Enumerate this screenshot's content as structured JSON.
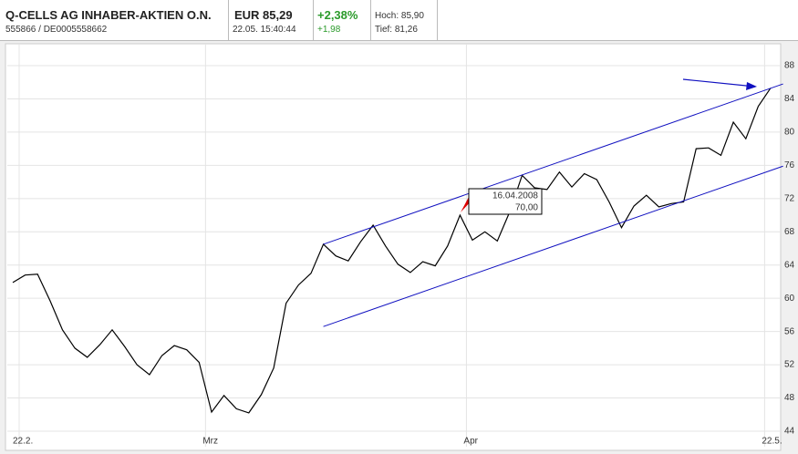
{
  "header": {
    "name": "Q-CELLS AG INHABER-AKTIEN O.N.",
    "ids": "555866  /  DE0005558662",
    "price": "EUR 85,29",
    "time": "22.05. 15:40:44",
    "change_pct": "+2,38%",
    "change_abs": "+1,98",
    "high": "Hoch: 85,90",
    "low": "Tief: 81,26"
  },
  "chart_data": {
    "type": "line",
    "categories": [
      "22.2.",
      null,
      null,
      null,
      null,
      null,
      null,
      null,
      null,
      null,
      null,
      null,
      null,
      null,
      null,
      "Mrz",
      null,
      null,
      null,
      null,
      null,
      null,
      null,
      null,
      null,
      null,
      null,
      null,
      null,
      null,
      null,
      null,
      null,
      null,
      null,
      null,
      "Apr",
      null,
      null,
      null,
      null,
      null,
      null,
      null,
      null,
      null,
      null,
      null,
      null,
      null,
      null,
      null,
      null,
      null,
      null,
      null,
      null,
      null,
      null,
      null,
      "22.5.",
      null
    ],
    "series": [
      {
        "color": "#000000",
        "values": [
          61.9,
          62.8,
          62.9,
          59.7,
          56.2,
          54.0,
          52.9,
          54.4,
          56.2,
          54.2,
          52.0,
          50.8,
          53.1,
          54.3,
          53.8,
          52.3,
          46.3,
          48.3,
          46.7,
          46.2,
          48.4,
          51.6,
          59.4,
          61.6,
          63.0,
          66.5,
          65.1,
          64.5,
          66.8,
          68.8,
          66.3,
          64.1,
          63.1,
          64.4,
          63.9,
          66.3,
          70.0,
          67.0,
          68.0,
          66.9,
          70.4,
          74.8,
          73.3,
          73.1,
          75.2,
          73.4,
          75.0,
          74.3,
          71.6,
          68.5,
          71.1,
          72.4,
          71.0,
          71.4,
          71.6,
          78.0,
          78.1,
          77.2,
          81.2,
          79.2,
          83.1,
          85.3
        ]
      }
    ],
    "trendlines": [
      {
        "color": "#1010c0",
        "values": [
          66.5,
          85.8
        ]
      },
      {
        "color": "#1010c0",
        "values": [
          56.6,
          75.9
        ]
      }
    ],
    "tooltip": {
      "date": "16.04.2008",
      "value": 70,
      "value_label": "70,00"
    },
    "ylim": [
      44,
      88
    ],
    "yticks": [
      44,
      48,
      52,
      56,
      60,
      64,
      68,
      72,
      76,
      80,
      84,
      88
    ],
    "grid": true
  }
}
